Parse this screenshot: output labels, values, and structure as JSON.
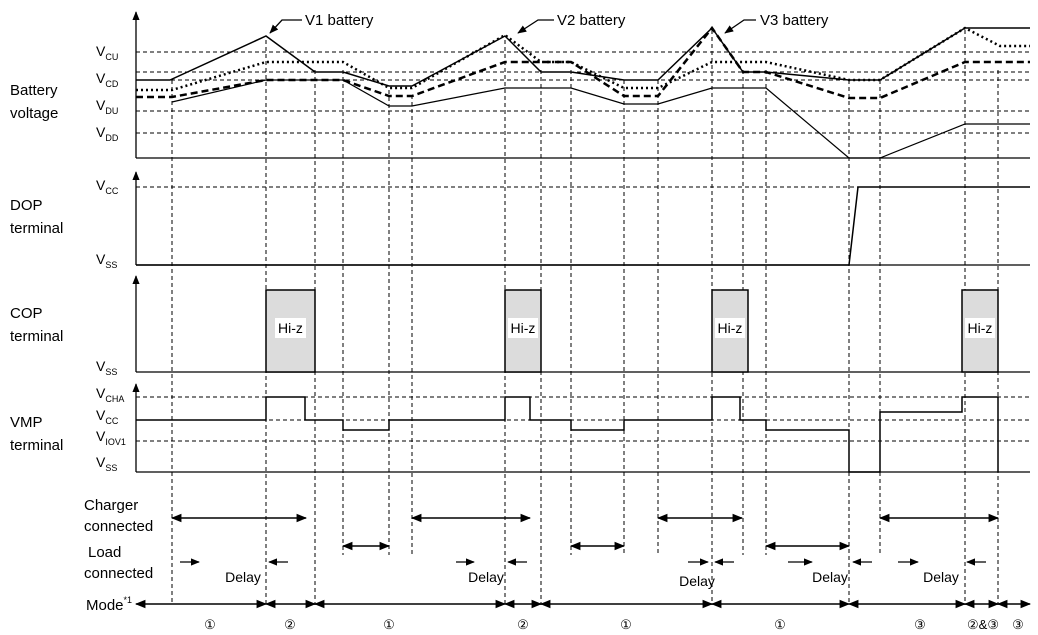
{
  "callouts": {
    "v1": "V1 battery",
    "v2": "V2 battery",
    "v3": "V3 battery"
  },
  "rows": {
    "battery": {
      "line1": "Battery",
      "line2": "voltage"
    },
    "dop": {
      "line1": "DOP",
      "line2": "terminal"
    },
    "cop": {
      "line1": "COP",
      "line2": "terminal"
    },
    "vmp": {
      "line1": "VMP",
      "line2": "terminal"
    }
  },
  "levels": {
    "vcu": {
      "main": "V",
      "sub": "CU"
    },
    "vcd": {
      "main": "V",
      "sub": "CD"
    },
    "vdu": {
      "main": "V",
      "sub": "DU"
    },
    "vdd": {
      "main": "V",
      "sub": "DD"
    },
    "dop_vcc": {
      "main": "V",
      "sub": "CC"
    },
    "dop_vss": {
      "main": "V",
      "sub": "SS"
    },
    "cop_vss": {
      "main": "V",
      "sub": "SS"
    },
    "vcha": {
      "main": "V",
      "sub": "CHA"
    },
    "vmp_vcc": {
      "main": "V",
      "sub": "CC"
    },
    "viov1": {
      "main": "V",
      "sub": "IOV1"
    },
    "vmp_vss": {
      "main": "V",
      "sub": "SS"
    }
  },
  "hiz_label": "Hi-z",
  "bottom": {
    "charger_line1": "Charger",
    "charger_line2": "connected",
    "load_line1": "Load",
    "load_line2": "connected",
    "delay": "Delay",
    "mode_label": "Mode",
    "mode_note": "*1"
  },
  "modes": [
    "①",
    "②",
    "①",
    "②",
    "①",
    "①",
    "③",
    "②&③",
    "③"
  ]
}
